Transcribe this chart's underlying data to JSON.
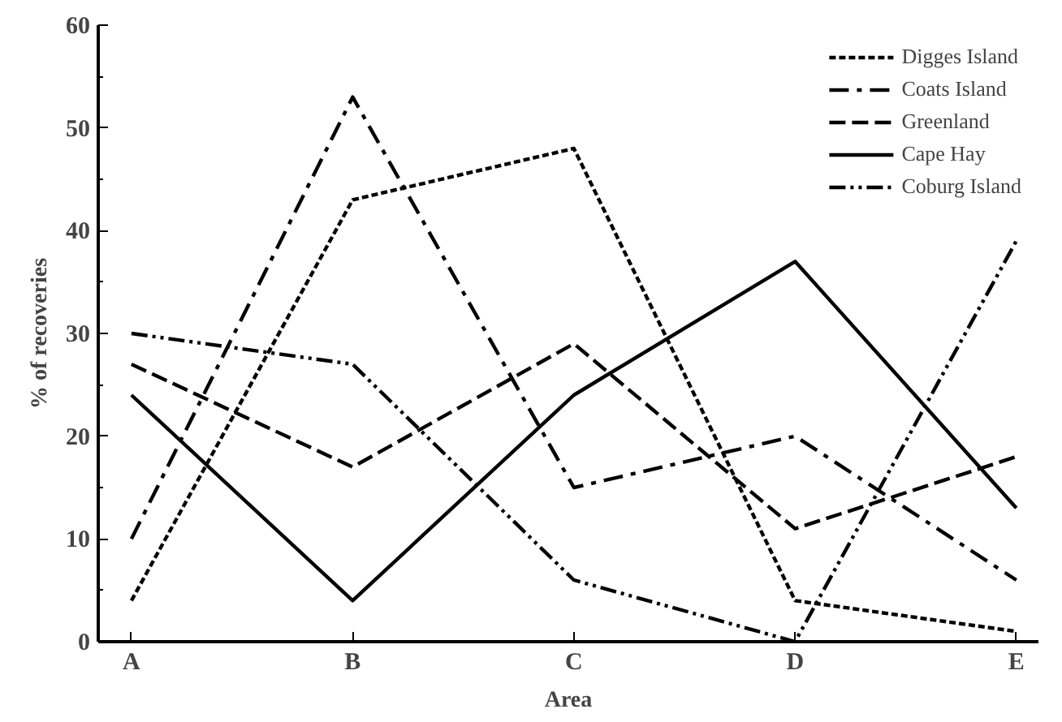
{
  "chart_data": {
    "type": "line",
    "xlabel": "Area",
    "ylabel": "% of recoveries",
    "categories": [
      "A",
      "B",
      "C",
      "D",
      "E"
    ],
    "ylim": [
      0,
      60
    ],
    "yticks": [
      0,
      10,
      20,
      30,
      40,
      50,
      60
    ],
    "grid": false,
    "legend": "top right",
    "marker": "none",
    "series": [
      {
        "name": "Digges Island",
        "color": "#000000",
        "line_style": "dotted",
        "values": [
          4,
          43,
          48,
          4,
          1
        ]
      },
      {
        "name": "Coats Island",
        "color": "#000000",
        "line_style": "dashdot",
        "values": [
          10,
          53,
          15,
          20,
          6
        ]
      },
      {
        "name": "Greenland",
        "color": "#000000",
        "line_style": "dashed",
        "values": [
          27,
          17,
          29,
          11,
          18
        ]
      },
      {
        "name": "Cape Hay",
        "color": "#000000",
        "line_style": "solid",
        "values": [
          24,
          4,
          24,
          37,
          13
        ]
      },
      {
        "name": "Coburg Island",
        "color": "#000000",
        "line_style": "dashdotdot",
        "values": [
          30,
          27,
          6,
          0,
          39
        ]
      }
    ]
  }
}
